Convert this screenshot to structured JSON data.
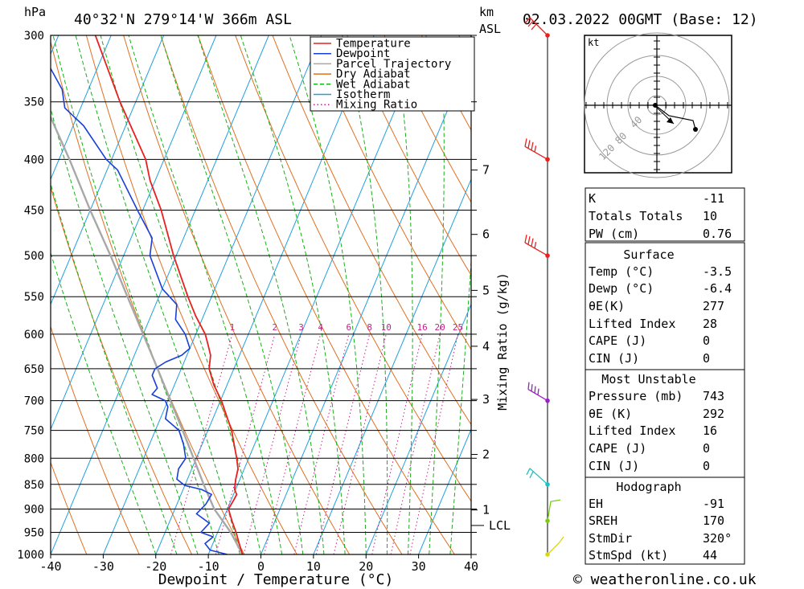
{
  "header": {
    "location": "40°32'N 279°14'W 366m ASL",
    "datetime": "02.03.2022 00GMT (Base: 12)",
    "hpa_unit": "hPa",
    "km_unit": "km",
    "asl_unit": "ASL",
    "kt_unit": "kt"
  },
  "footer": {
    "credit": "© weatheronline.co.uk"
  },
  "colors": {
    "temperature": "#e82020",
    "dewpoint": "#1a3fd8",
    "parcel": "#a8a8a8",
    "dry_adiabat": "#e07020",
    "wet_adiabat": "#18b018",
    "isotherm": "#20a0e0",
    "mixing_ratio": "#c8208a"
  },
  "chart_data": {
    "type": "skew-t",
    "xlabel": "Dewpoint / Temperature (°C)",
    "ylabel": "hPa",
    "mixing_ratio_label": "Mixing Ratio (g/kg)",
    "xlim": [
      -40,
      40
    ],
    "ylim": [
      1000,
      300
    ],
    "x_ticks": [
      "-40",
      "-30",
      "-20",
      "-10",
      "0",
      "10",
      "20",
      "30",
      "40"
    ],
    "x_tick_values": [
      -40,
      -30,
      -20,
      -10,
      0,
      10,
      20,
      30,
      40
    ],
    "pressure_ticks": [
      "300",
      "350",
      "400",
      "450",
      "500",
      "550",
      "600",
      "650",
      "700",
      "750",
      "800",
      "850",
      "900",
      "950",
      "1000"
    ],
    "pressure_values": [
      300,
      350,
      400,
      450,
      500,
      550,
      600,
      650,
      700,
      750,
      800,
      850,
      900,
      950,
      1000
    ],
    "km_labels": [
      {
        "label": "7",
        "p": 410
      },
      {
        "label": "6",
        "p": 476
      },
      {
        "label": "5",
        "p": 542
      },
      {
        "label": "4",
        "p": 617
      },
      {
        "label": "3",
        "p": 698
      },
      {
        "label": "2",
        "p": 793
      },
      {
        "label": "1",
        "p": 902
      },
      {
        "label": "LCL",
        "p": 935
      }
    ],
    "mixing_ratio_labels": [
      "1",
      "2",
      "3",
      "4",
      "6",
      "8",
      "10",
      "16",
      "20",
      "25"
    ],
    "mixing_ratio_values": [
      1,
      2,
      3,
      4,
      6,
      8,
      10,
      16,
      20,
      25
    ],
    "legend": [
      "Temperature",
      "Dewpoint",
      "Parcel Trajectory",
      "Dry Adiabat",
      "Wet Adiabat",
      "Isotherm",
      "Mixing Ratio"
    ],
    "legend_position": "top-right",
    "series": [
      {
        "name": "Temperature",
        "points": [
          [
            1000,
            -3.5
          ],
          [
            975,
            -5
          ],
          [
            950,
            -6.5
          ],
          [
            925,
            -8.2
          ],
          [
            900,
            -9.8
          ],
          [
            880,
            -9.5
          ],
          [
            870,
            -9.4
          ],
          [
            860,
            -10.2
          ],
          [
            850,
            -10.5
          ],
          [
            840,
            -10.8
          ],
          [
            820,
            -11.2
          ],
          [
            800,
            -12.3
          ],
          [
            750,
            -15.5
          ],
          [
            700,
            -19.8
          ],
          [
            675,
            -22.5
          ],
          [
            650,
            -24.7
          ],
          [
            630,
            -25.5
          ],
          [
            615,
            -26.8
          ],
          [
            600,
            -28.2
          ],
          [
            575,
            -31.5
          ],
          [
            550,
            -34.5
          ],
          [
            500,
            -40.5
          ],
          [
            450,
            -46.5
          ],
          [
            420,
            -51
          ],
          [
            400,
            -53.5
          ],
          [
            350,
            -63
          ],
          [
            300,
            -73
          ]
        ]
      },
      {
        "name": "Dewpoint",
        "points": [
          [
            1000,
            -6.4
          ],
          [
            990,
            -10
          ],
          [
            975,
            -11.5
          ],
          [
            960,
            -10.5
          ],
          [
            950,
            -13.2
          ],
          [
            930,
            -12.3
          ],
          [
            910,
            -15.5
          ],
          [
            890,
            -14.5
          ],
          [
            870,
            -14.2
          ],
          [
            860,
            -16.5
          ],
          [
            852,
            -20
          ],
          [
            840,
            -22
          ],
          [
            820,
            -22.5
          ],
          [
            800,
            -22
          ],
          [
            775,
            -23.5
          ],
          [
            750,
            -25.5
          ],
          [
            730,
            -29
          ],
          [
            710,
            -29.5
          ],
          [
            700,
            -30.5
          ],
          [
            690,
            -33.5
          ],
          [
            680,
            -33
          ],
          [
            660,
            -35
          ],
          [
            650,
            -35
          ],
          [
            640,
            -33.5
          ],
          [
            630,
            -31
          ],
          [
            620,
            -30
          ],
          [
            600,
            -32
          ],
          [
            580,
            -35
          ],
          [
            560,
            -36
          ],
          [
            540,
            -40
          ],
          [
            500,
            -45
          ],
          [
            480,
            -46
          ],
          [
            450,
            -51
          ],
          [
            410,
            -58
          ],
          [
            400,
            -61
          ],
          [
            370,
            -68
          ],
          [
            355,
            -73
          ],
          [
            340,
            -75
          ],
          [
            300,
            -85
          ]
        ]
      },
      {
        "name": "Parcel Trajectory",
        "points": [
          [
            1000,
            -3.5
          ],
          [
            950,
            -7.5
          ],
          [
            900,
            -12.5
          ],
          [
            850,
            -16.5
          ],
          [
            800,
            -20.5
          ],
          [
            750,
            -24.8
          ],
          [
            700,
            -29.5
          ],
          [
            650,
            -34.5
          ],
          [
            600,
            -40
          ],
          [
            550,
            -46
          ],
          [
            500,
            -52.5
          ],
          [
            450,
            -60
          ],
          [
            400,
            -68
          ],
          [
            350,
            -77.5
          ],
          [
            300,
            -89
          ]
        ]
      }
    ],
    "wind_barbs": [
      {
        "p": 300,
        "color": "#e82020"
      },
      {
        "p": 400,
        "color": "#e82020"
      },
      {
        "p": 500,
        "color": "#e82020"
      },
      {
        "p": 700,
        "color": "#9b20c8"
      },
      {
        "p": 850,
        "color": "#20c0c0"
      },
      {
        "p": 925,
        "color": "#7acc10"
      },
      {
        "p": 1000,
        "color": "#d8d810"
      }
    ]
  },
  "hodograph": {
    "ring_labels": [
      "40",
      "80",
      "120"
    ]
  },
  "indices": {
    "k_label": "K",
    "k_value": "-11",
    "tt_label": "Totals Totals",
    "tt_value": "10",
    "pw_label": "PW (cm)",
    "pw_value": "0.76"
  },
  "surface": {
    "title": "Surface",
    "temp_label": "Temp (°C)",
    "temp_value": "-3.5",
    "dewp_label": "Dewp (°C)",
    "dewp_value": "-6.4",
    "theta_label": "θE(K)",
    "theta_value": "277",
    "li_label": "Lifted Index",
    "li_value": "28",
    "cape_label": "CAPE (J)",
    "cape_value": "0",
    "cin_label": "CIN (J)",
    "cin_value": "0"
  },
  "most_unstable": {
    "title": "Most Unstable",
    "pressure_label": "Pressure (mb)",
    "pressure_value": "743",
    "theta_label": "θE (K)",
    "theta_value": "292",
    "li_label": "Lifted Index",
    "li_value": "16",
    "cape_label": "CAPE (J)",
    "cape_value": "0",
    "cin_label": "CIN (J)",
    "cin_value": "0"
  },
  "hodograph_table": {
    "title": "Hodograph",
    "eh_label": "EH",
    "eh_value": "-91",
    "sreh_label": "SREH",
    "sreh_value": "170",
    "stmdir_label": "StmDir",
    "stmdir_value": "320°",
    "stmspd_label": "StmSpd (kt)",
    "stmspd_value": "44"
  }
}
